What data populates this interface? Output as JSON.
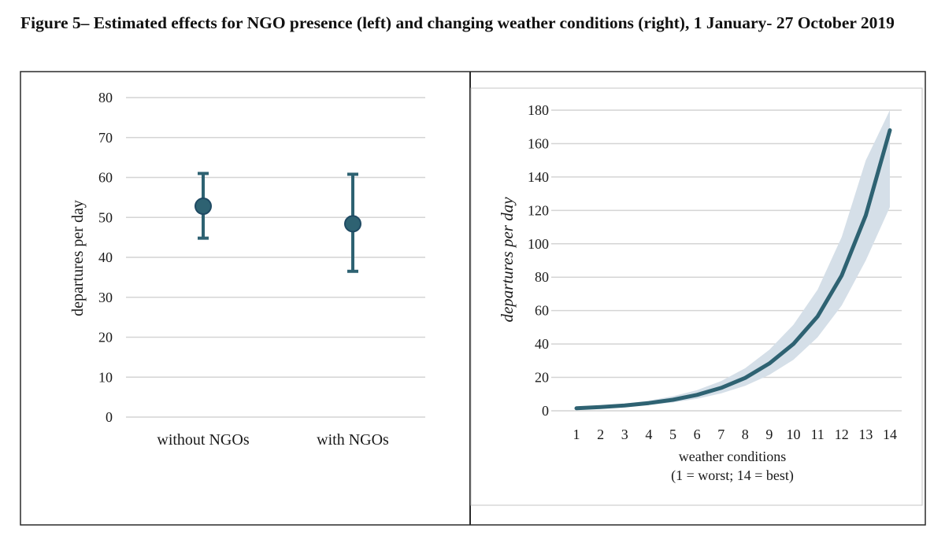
{
  "figure": {
    "caption": "Figure 5– Estimated effects for NGO presence (left) and changing weather conditions (right), 1 January- 27 October 2019"
  },
  "colors": {
    "series": "#2e6272",
    "marker_edge": "#1f4a63",
    "band": "#d5dfe8",
    "grid": "#d4d4d4",
    "frame": "#2a2a2a"
  },
  "chart_data": [
    {
      "type": "scatter",
      "categories": [
        "without NGOs",
        "with NGOs"
      ],
      "values": [
        52.8,
        48.4
      ],
      "error_low": [
        44.8,
        36.5
      ],
      "error_high": [
        61.0,
        60.8
      ],
      "ylabel": "departures per day",
      "ylim": [
        0,
        80
      ],
      "yticks": [
        0,
        10,
        20,
        30,
        40,
        50,
        60,
        70,
        80
      ],
      "grid": true
    },
    {
      "type": "line",
      "x": [
        1,
        2,
        3,
        4,
        5,
        6,
        7,
        8,
        9,
        10,
        11,
        12,
        13,
        14
      ],
      "values": [
        1.5,
        2.2,
        3.2,
        4.6,
        6.6,
        9.5,
        13.7,
        19.7,
        28.3,
        40.0,
        56.5,
        81.0,
        117.0,
        168.0
      ],
      "ci_low": [
        1.0,
        1.6,
        2.4,
        3.5,
        5.0,
        7.2,
        10.4,
        15.0,
        21.5,
        30.5,
        44.0,
        63.0,
        90.0,
        122.0
      ],
      "ci_high": [
        2.1,
        3.0,
        4.3,
        6.1,
        8.7,
        12.4,
        17.8,
        25.5,
        36.5,
        51.5,
        72.5,
        104.0,
        150.0,
        180.0
      ],
      "xlabel": "weather conditions",
      "xlabel_sub": "(1 = worst; 14 = best)",
      "ylabel": "departures per day",
      "ylim": [
        0,
        180
      ],
      "yticks": [
        0,
        20,
        40,
        60,
        80,
        100,
        120,
        140,
        160,
        180
      ],
      "grid": true
    }
  ]
}
